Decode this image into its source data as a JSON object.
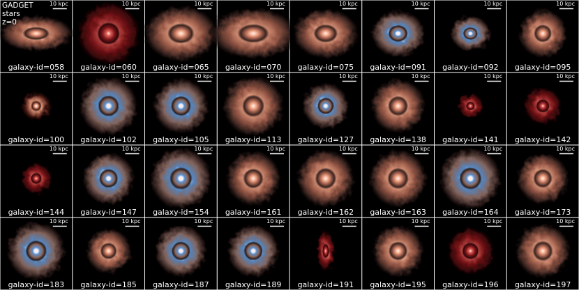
{
  "header": [
    "GADGET",
    "stars",
    "z=0"
  ],
  "panels": [
    {
      "label": "galaxy-id=058",
      "scale": "10 kpc"
    },
    {
      "label": "galaxy-id=060",
      "scale": "10 kpc"
    },
    {
      "label": "galaxy-id=065",
      "scale": "10 kpc"
    },
    {
      "label": "galaxy-id=070",
      "scale": "10 kpc"
    },
    {
      "label": "galaxy-id=075",
      "scale": "10 kpc"
    },
    {
      "label": "galaxy-id=091",
      "scale": "10 kpc"
    },
    {
      "label": "galaxy-id=092",
      "scale": "10 kpc"
    },
    {
      "label": "galaxy-id=095",
      "scale": "10 kpc"
    },
    {
      "label": "galaxy-id=100",
      "scale": "10 kpc"
    },
    {
      "label": "galaxy-id=102",
      "scale": "10 kpc"
    },
    {
      "label": "galaxy-id=105",
      "scale": "10 kpc"
    },
    {
      "label": "galaxy-id=113",
      "scale": "10 kpc"
    },
    {
      "label": "galaxy-id=127",
      "scale": "10 kpc"
    },
    {
      "label": "galaxy-id=138",
      "scale": "10 kpc"
    },
    {
      "label": "galaxy-id=141",
      "scale": "10 kpc"
    },
    {
      "label": "galaxy-id=142",
      "scale": "10 kpc"
    },
    {
      "label": "galaxy-id=144",
      "scale": "10 kpc"
    },
    {
      "label": "galaxy-id=147",
      "scale": "10 kpc"
    },
    {
      "label": "galaxy-id=154",
      "scale": "10 kpc"
    },
    {
      "label": "galaxy-id=161",
      "scale": "10 kpc"
    },
    {
      "label": "galaxy-id=162",
      "scale": "10 kpc"
    },
    {
      "label": "galaxy-id=163",
      "scale": "10 kpc"
    },
    {
      "label": "galaxy-id=164",
      "scale": "10 kpc"
    },
    {
      "label": "galaxy-id=173",
      "scale": "10 kpc"
    },
    {
      "label": "galaxy-id=183",
      "scale": "10 kpc"
    },
    {
      "label": "galaxy-id=185",
      "scale": "10 kpc"
    },
    {
      "label": "galaxy-id=187",
      "scale": "10 kpc"
    },
    {
      "label": "galaxy-id=189",
      "scale": "10 kpc"
    },
    {
      "label": "galaxy-id=191",
      "scale": "10 kpc"
    },
    {
      "label": "galaxy-id=195",
      "scale": "10 kpc"
    },
    {
      "label": "galaxy-id=196",
      "scale": "10 kpc"
    },
    {
      "label": "galaxy-id=197",
      "scale": "10 kpc"
    }
  ]
}
